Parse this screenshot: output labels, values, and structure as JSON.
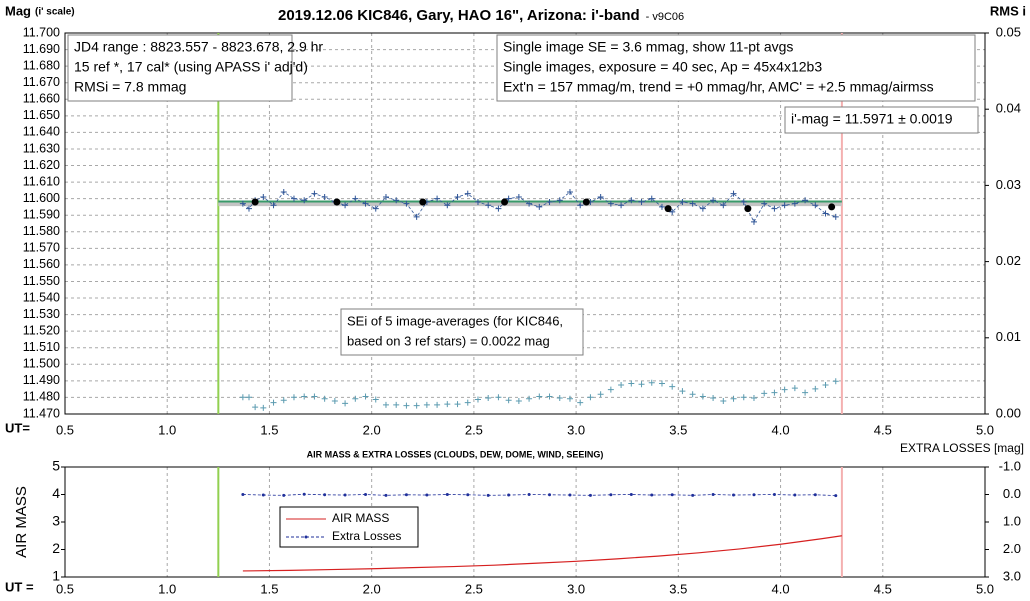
{
  "chart_data": [
    {
      "type": "line",
      "title": "2019.12.06 KIC846, Gary, HAO 16\", Arizona: i'-band",
      "subtitle": "- v9C06",
      "ylabel": "Mag",
      "ylabel_note": "(i' scale)",
      "y2label": "RMS i",
      "xlabel": "UT=",
      "xlim": [
        0.5,
        5.0
      ],
      "xticks": [
        0.5,
        {
          "value": 1.0,
          "label": "1.0"
        },
        1.5,
        {
          "value": 2.0,
          "label": "2.0"
        },
        2.5,
        {
          "value": 3.0,
          "label": "3.0"
        },
        3.5,
        {
          "value": 4.0,
          "label": "4.0"
        },
        4.5,
        {
          "value": 5.0,
          "label": "5.0"
        }
      ],
      "ylim": [
        11.47,
        11.7
      ],
      "yticks": [
        {
          "value": 11.47,
          "label": "11.470"
        },
        {
          "value": 11.48,
          "label": "11.480"
        },
        {
          "value": 11.49,
          "label": "11.490"
        },
        {
          "value": 11.5,
          "label": "11.500"
        },
        {
          "value": 11.51,
          "label": "11.510"
        },
        {
          "value": 11.52,
          "label": "11.520"
        },
        {
          "value": 11.53,
          "label": "11.530"
        },
        {
          "value": 11.54,
          "label": "11.540"
        },
        {
          "value": 11.55,
          "label": "11.550"
        },
        {
          "value": 11.56,
          "label": "11.560"
        },
        {
          "value": 11.57,
          "label": "11.570"
        },
        {
          "value": 11.58,
          "label": "11.580"
        },
        {
          "value": 11.59,
          "label": "11.590"
        },
        {
          "value": 11.6,
          "label": "11.600"
        },
        {
          "value": 11.61,
          "label": "11.610"
        },
        {
          "value": 11.62,
          "label": "11.620"
        },
        {
          "value": 11.63,
          "label": "11.630"
        },
        {
          "value": 11.64,
          "label": "11.640"
        },
        {
          "value": 11.65,
          "label": "11.650"
        },
        {
          "value": 11.66,
          "label": "11.660"
        },
        {
          "value": 11.67,
          "label": "11.670"
        },
        {
          "value": 11.68,
          "label": "11.680"
        },
        {
          "value": 11.69,
          "label": "11.690"
        },
        {
          "value": 11.7,
          "label": "11.700"
        }
      ],
      "y2lim": [
        0,
        0.05
      ],
      "y2ticks": [
        {
          "value": 0,
          "label": "0.00"
        },
        {
          "value": 0.01,
          "label": "0.01"
        },
        {
          "value": 0.02,
          "label": "0.02"
        },
        {
          "value": 0.03,
          "label": "0.03"
        },
        {
          "value": 0.04,
          "label": "0.04"
        },
        {
          "value": 0.05,
          "label": "0.05"
        }
      ],
      "grid": true,
      "vlines": [
        {
          "value": 1.25,
          "color": "#92d050"
        },
        {
          "value": 4.3,
          "color": "#f4b0b0"
        }
      ],
      "hlines": [
        {
          "value": 11.597,
          "color": "#c4c4c4",
          "width": 5
        },
        {
          "value": 11.5983,
          "color": "#3a9a6a",
          "width": 2
        }
      ],
      "x": [
        1.37,
        1.4,
        1.43,
        1.47,
        1.52,
        1.57,
        1.62,
        1.67,
        1.72,
        1.77,
        1.82,
        1.87,
        1.92,
        1.97,
        2.02,
        2.07,
        2.12,
        2.17,
        2.22,
        2.27,
        2.32,
        2.37,
        2.42,
        2.47,
        2.52,
        2.57,
        2.62,
        2.67,
        2.72,
        2.77,
        2.82,
        2.87,
        2.92,
        2.97,
        3.02,
        3.07,
        3.12,
        3.17,
        3.22,
        3.27,
        3.32,
        3.37,
        3.42,
        3.47,
        3.52,
        3.57,
        3.62,
        3.67,
        3.72,
        3.77,
        3.82,
        3.87,
        3.92,
        3.97,
        4.02,
        4.07,
        4.12,
        4.17,
        4.22,
        4.27
      ],
      "series": [
        {
          "color": "#2f5597",
          "line": "dashed",
          "marker": "plus",
          "values": [
            11.597,
            11.594,
            11.599,
            11.601,
            11.596,
            11.604,
            11.6,
            11.599,
            11.603,
            11.601,
            11.598,
            11.596,
            11.6,
            11.597,
            11.594,
            11.601,
            11.599,
            11.597,
            11.589,
            11.598,
            11.6,
            11.596,
            11.601,
            11.603,
            11.598,
            11.596,
            11.594,
            11.6,
            11.601,
            11.597,
            11.595,
            11.598,
            11.599,
            11.604,
            11.596,
            11.598,
            11.601,
            11.597,
            11.596,
            11.599,
            11.598,
            11.6,
            11.595,
            11.592,
            11.598,
            11.597,
            11.594,
            11.599,
            11.596,
            11.603,
            11.598,
            11.586,
            11.597,
            11.594,
            11.596,
            11.597,
            11.599,
            11.596,
            11.591,
            11.589
          ]
        },
        {
          "color": "#000000",
          "line": "none",
          "marker": "dot",
          "x": [
            1.43,
            1.83,
            2.25,
            2.65,
            3.05,
            3.45,
            3.84,
            4.25
          ],
          "values": [
            11.598,
            11.598,
            11.598,
            11.598,
            11.598,
            11.594,
            11.594,
            11.595
          ]
        },
        {
          "color": "#5b9bb0",
          "line": "none",
          "marker": "plus",
          "axis": "y2",
          "values": [
            0.0022,
            0.0022,
            0.0009,
            0.0008,
            0.0015,
            0.0018,
            0.0022,
            0.0023,
            0.0023,
            0.002,
            0.0017,
            0.0014,
            0.002,
            0.0023,
            0.0019,
            0.0012,
            0.0012,
            0.0011,
            0.0011,
            0.0012,
            0.0012,
            0.0013,
            0.0013,
            0.0015,
            0.0019,
            0.0021,
            0.0022,
            0.0018,
            0.0017,
            0.002,
            0.0023,
            0.0023,
            0.0021,
            0.002,
            0.0015,
            0.0022,
            0.0026,
            0.0032,
            0.0038,
            0.004,
            0.0039,
            0.0041,
            0.004,
            0.0036,
            0.003,
            0.0026,
            0.0023,
            0.0021,
            0.0017,
            0.002,
            0.0022,
            0.0021,
            0.0027,
            0.0028,
            0.0032,
            0.0034,
            0.0028,
            0.0033,
            0.0038,
            0.0043
          ]
        }
      ],
      "annotations": [
        {
          "lines": [
            "JD4 range : 8823.557 - 8823.678, 2.9  hr",
            "15 ref *, 17 cal* (using APASS i' adj'd)",
            "RMSi = 7.8 mmag"
          ]
        },
        {
          "lines": [
            "Single image SE = 3.6 mmag, show 11-pt avgs",
            "Single images, exposure = 40 sec, Ap = 45x4x12b3",
            "Ext'n = 157 mmag/m, trend = +0 mmag/hr, AMC' = +2.5 mmag/airmss"
          ]
        },
        {
          "lines": [
            "i'-mag = 11.5971 ± 0.0019"
          ]
        },
        {
          "lines": [
            "SEi of 5 image-averages (for KIC846,",
            "based on 3 ref stars) = 0.0022 mag"
          ]
        }
      ]
    },
    {
      "type": "line",
      "title": "AIR MASS & EXTRA LOSSES (CLOUDS, DEW, DOME, WIND, SEEING)",
      "ylabel": "AIR MASS",
      "y2label": "EXTRA LOSSES [mag]",
      "xlabel": "UT =",
      "xlim": [
        0.5,
        5.0
      ],
      "xticks": [
        0.5,
        {
          "value": 1.0,
          "label": "1.0"
        },
        1.5,
        {
          "value": 2.0,
          "label": "2.0"
        },
        2.5,
        {
          "value": 3.0,
          "label": "3.0"
        },
        3.5,
        {
          "value": 4.0,
          "label": "4.0"
        },
        4.5,
        {
          "value": 5.0,
          "label": "5.0"
        }
      ],
      "ylim": [
        1,
        5
      ],
      "yticks": [
        1,
        2,
        3,
        4,
        5
      ],
      "y2lim": [
        -1,
        3
      ],
      "y2_inverted": true,
      "y2ticks": [
        {
          "value": -1,
          "label": "-1.0"
        },
        {
          "value": 0,
          "label": "0.0"
        },
        {
          "value": 1,
          "label": "1.0"
        },
        {
          "value": 2,
          "label": "2.0"
        },
        {
          "value": 3,
          "label": "3.0"
        }
      ],
      "grid": true,
      "vlines": [
        {
          "value": 1.25,
          "color": "#92d050"
        },
        {
          "value": 4.3,
          "color": "#f4b0b0"
        }
      ],
      "series": [
        {
          "name": "AIR MASS",
          "color": "#d62020",
          "line": "solid",
          "marker": "none",
          "x": [
            1.37,
            1.6,
            1.8,
            2.0,
            2.2,
            2.4,
            2.6,
            2.8,
            3.0,
            3.2,
            3.4,
            3.6,
            3.8,
            4.0,
            4.2,
            4.3
          ],
          "values": [
            1.22,
            1.24,
            1.27,
            1.3,
            1.34,
            1.38,
            1.43,
            1.5,
            1.57,
            1.66,
            1.76,
            1.88,
            2.02,
            2.19,
            2.39,
            2.5
          ]
        },
        {
          "name": "Extra Losses",
          "color": "#1f2f9a",
          "line": "dashed",
          "marker": "smalldot",
          "axis": "y2",
          "x": [
            1.37,
            1.47,
            1.57,
            1.67,
            1.77,
            1.87,
            1.97,
            2.07,
            2.17,
            2.27,
            2.37,
            2.47,
            2.57,
            2.67,
            2.77,
            2.87,
            2.97,
            3.07,
            3.17,
            3.27,
            3.37,
            3.47,
            3.57,
            3.67,
            3.77,
            3.87,
            3.97,
            4.07,
            4.17,
            4.27
          ],
          "values": [
            0.0,
            0.02,
            0.03,
            -0.01,
            0.01,
            0.02,
            0.0,
            0.03,
            0.01,
            0.02,
            0.0,
            0.01,
            0.03,
            0.02,
            0.0,
            0.01,
            0.02,
            0.03,
            0.01,
            0.0,
            0.02,
            0.01,
            0.03,
            0.0,
            0.02,
            0.01,
            0.0,
            0.02,
            0.01,
            0.04
          ]
        }
      ]
    }
  ]
}
